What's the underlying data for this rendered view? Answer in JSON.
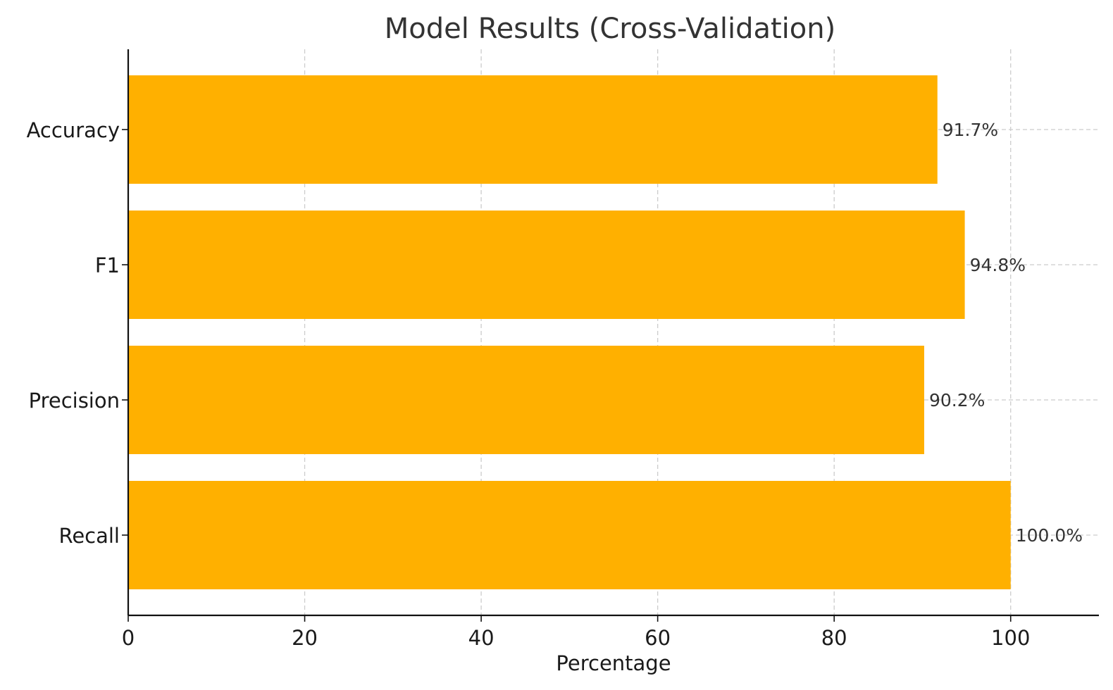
{
  "chart_data": {
    "type": "bar",
    "orientation": "horizontal",
    "title": "Model Results (Cross-Validation)",
    "xlabel": "Percentage",
    "ylabel": "",
    "categories": [
      "Accuracy",
      "F1",
      "Precision",
      "Recall"
    ],
    "values": [
      91.7,
      94.8,
      90.2,
      100.0
    ],
    "data_labels": [
      "91.7%",
      "94.8%",
      "90.2%",
      "100.0%"
    ],
    "xlim": [
      0,
      110
    ],
    "xticks": [
      0,
      20,
      40,
      60,
      80,
      100
    ],
    "xtick_labels": [
      "0",
      "20",
      "40",
      "60",
      "80",
      "100"
    ],
    "grid": true,
    "bar_color": "#FFB000"
  }
}
